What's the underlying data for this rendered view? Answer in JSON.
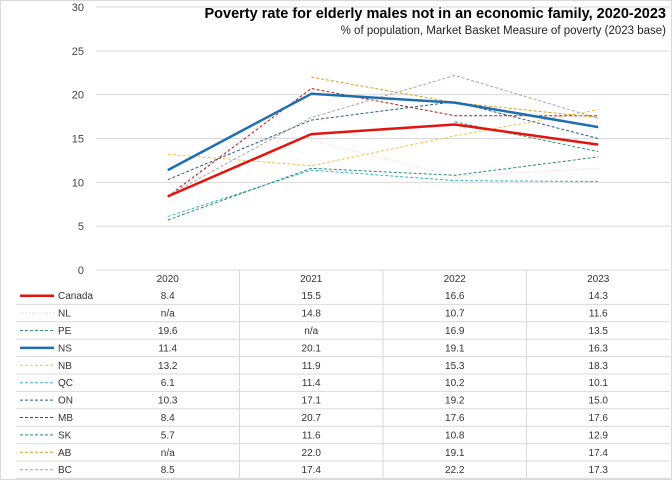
{
  "chart_data": {
    "type": "line",
    "title": "Poverty rate for elderly males not in an economic family, 2020-2023",
    "subtitle": "% of population, Market Basket Measure of poverty (2023 base)",
    "xlabel": "",
    "ylabel": "",
    "ylim": [
      0,
      30
    ],
    "yticks": [
      "0",
      "5",
      "10",
      "15",
      "20",
      "25",
      "30"
    ],
    "grid": true,
    "legend": "data-table-bottom",
    "categories": [
      "2020",
      "2021",
      "2022",
      "2023"
    ],
    "series": [
      {
        "name": "Canada",
        "color": "#e3140f",
        "style": "solid",
        "width": 2.5,
        "labels": [
          "8.4",
          "15.5",
          "16.6",
          "14.3"
        ],
        "values": [
          8.4,
          15.5,
          16.6,
          14.3
        ]
      },
      {
        "name": "NL",
        "color": "#f4c7cf",
        "style": "dotted",
        "width": 1,
        "labels": [
          "n/a",
          "14.8",
          "10.7",
          "11.6"
        ],
        "values": [
          null,
          14.8,
          10.7,
          11.6
        ]
      },
      {
        "name": "PE",
        "color": "#3a9a6a",
        "style": "dashed",
        "width": 1,
        "labels": [
          "19.6",
          "n/a",
          "16.9",
          "13.5"
        ],
        "values": [
          19.6,
          null,
          16.9,
          13.5
        ]
      },
      {
        "name": "NS",
        "color": "#1f6fb0",
        "style": "solid",
        "width": 2.5,
        "labels": [
          "11.4",
          "20.1",
          "19.1",
          "16.3"
        ],
        "values": [
          11.4,
          20.1,
          19.1,
          16.3
        ]
      },
      {
        "name": "NB",
        "color": "#f2c04a",
        "style": "dashed",
        "width": 1,
        "labels": [
          "13.2",
          "11.9",
          "15.3",
          "18.3"
        ],
        "values": [
          13.2,
          11.9,
          15.3,
          18.3
        ]
      },
      {
        "name": "QC",
        "color": "#3ab0cf",
        "style": "dashed",
        "width": 1,
        "labels": [
          "6.1",
          "11.4",
          "10.2",
          "10.1"
        ],
        "values": [
          6.1,
          11.4,
          10.2,
          10.1
        ]
      },
      {
        "name": "ON",
        "color": "#2c5a8a",
        "style": "dashed",
        "width": 1,
        "labels": [
          "10.3",
          "17.1",
          "19.2",
          "15.0"
        ],
        "values": [
          10.3,
          17.1,
          19.2,
          15.0
        ]
      },
      {
        "name": "MB",
        "color": "#b01c1c",
        "style": "dashed",
        "width": 1,
        "labels": [
          "8.4",
          "20.7",
          "17.6",
          "17.6"
        ],
        "values": [
          8.4,
          20.7,
          17.6,
          17.6
        ]
      },
      {
        "name": "SK",
        "color": "#2a8a7a",
        "style": "dashed",
        "width": 1,
        "labels": [
          "5.7",
          "11.6",
          "10.8",
          "12.9"
        ],
        "values": [
          5.7,
          11.6,
          10.8,
          12.9
        ]
      },
      {
        "name": "AB",
        "color": "#d9a21a",
        "style": "dashed",
        "width": 1,
        "labels": [
          "n/a",
          "22.0",
          "19.1",
          "17.4"
        ],
        "values": [
          null,
          22.0,
          19.1,
          17.4
        ]
      },
      {
        "name": "BC",
        "color": "#a6a6a6",
        "style": "dashed",
        "width": 1,
        "labels": [
          "8.5",
          "17.4",
          "22.2",
          "17.3"
        ],
        "values": [
          8.5,
          17.4,
          22.2,
          17.3
        ]
      }
    ]
  }
}
